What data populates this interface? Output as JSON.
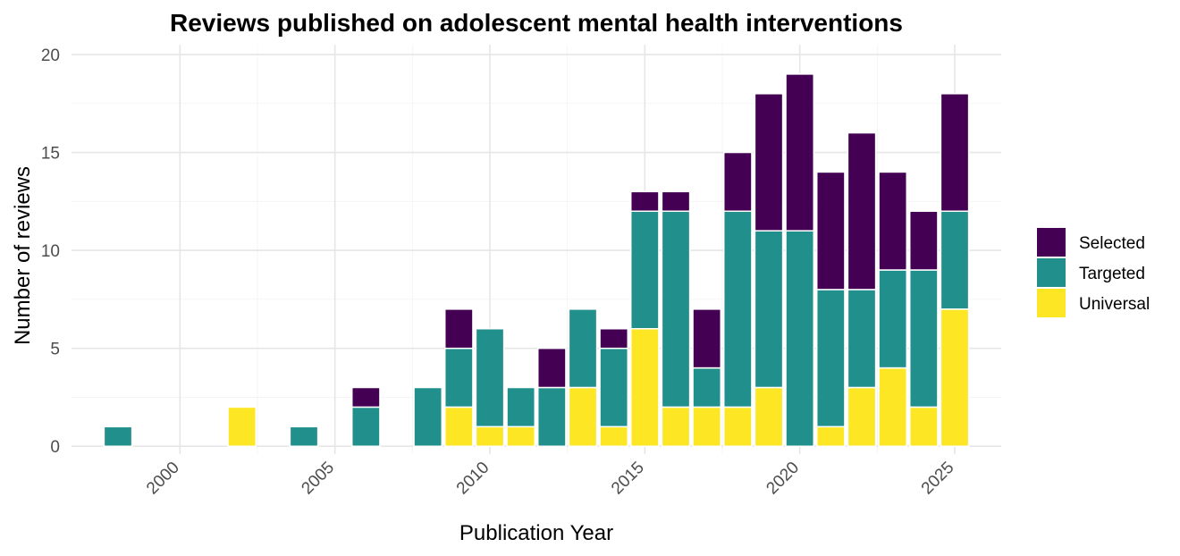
{
  "chart_data": {
    "type": "bar",
    "stacked": true,
    "title": "Reviews published on adolescent mental health interventions",
    "xlabel": "Publication Year",
    "ylabel": "Number of reviews",
    "x": [
      1998,
      2002,
      2004,
      2006,
      2008,
      2009,
      2010,
      2011,
      2012,
      2013,
      2014,
      2015,
      2016,
      2017,
      2018,
      2019,
      2020,
      2021,
      2022,
      2023,
      2024,
      2025
    ],
    "series": [
      {
        "name": "Universal",
        "color": "#FDE725",
        "values": [
          0,
          2,
          0,
          0,
          0,
          2,
          1,
          1,
          0,
          3,
          1,
          6,
          2,
          2,
          2,
          3,
          0,
          1,
          3,
          4,
          2,
          7
        ]
      },
      {
        "name": "Targeted",
        "color": "#21908C",
        "values": [
          1,
          0,
          1,
          2,
          3,
          3,
          5,
          2,
          3,
          4,
          4,
          6,
          10,
          2,
          10,
          8,
          11,
          7,
          5,
          5,
          7,
          5
        ]
      },
      {
        "name": "Selected",
        "color": "#440154",
        "values": [
          0,
          0,
          0,
          1,
          0,
          2,
          0,
          0,
          2,
          0,
          1,
          1,
          1,
          3,
          3,
          7,
          8,
          6,
          8,
          5,
          3,
          6
        ]
      }
    ],
    "legend_order": [
      "Selected",
      "Targeted",
      "Universal"
    ],
    "xticks": [
      "2000",
      "2005",
      "2010",
      "2015",
      "2020",
      "2025"
    ],
    "yticks": [
      "0",
      "5",
      "10",
      "15",
      "20"
    ],
    "xlim": [
      1996.5,
      2026.5
    ],
    "ylim": [
      -0.4,
      20.5
    ],
    "grid": true,
    "legend_position": "right"
  }
}
